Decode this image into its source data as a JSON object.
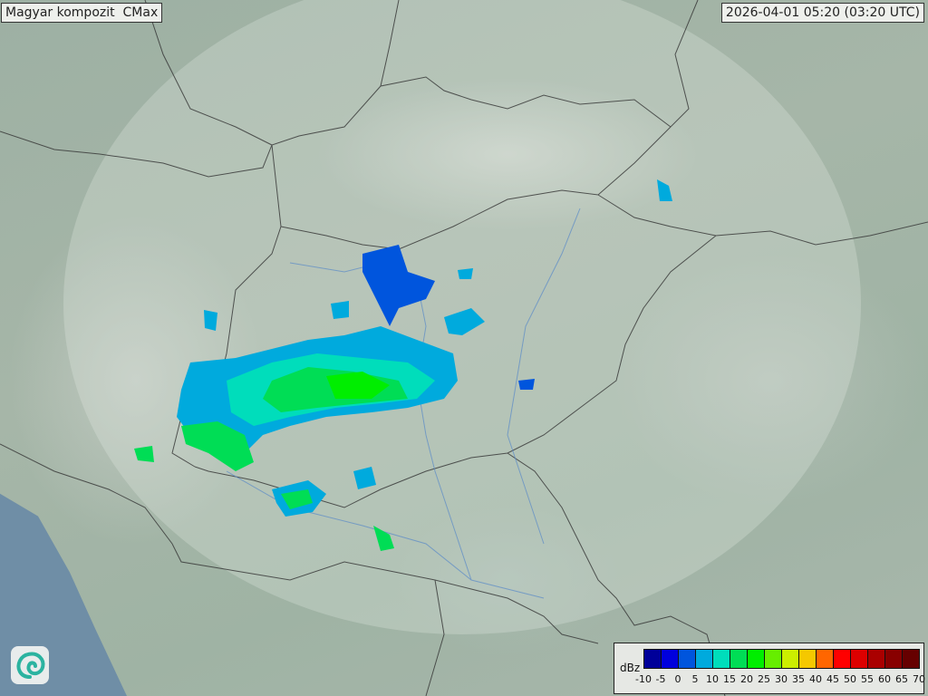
{
  "header": {
    "product_title": "Magyar kompozit  CMax",
    "timestamp": "2026-04-01 05:20 (03:20 UTC)"
  },
  "legend": {
    "unit": "dBz",
    "colors": [
      "#000099",
      "#0000dd",
      "#0055dd",
      "#00aadd",
      "#00ddbb",
      "#00dd55",
      "#00ee00",
      "#66ee00",
      "#ccee00",
      "#f5c800",
      "#ff6600",
      "#ff0000",
      "#dd0000",
      "#aa0000",
      "#880000",
      "#660000"
    ],
    "ticks": [
      "-10",
      "-5",
      "0",
      "5",
      "10",
      "15",
      "20",
      "25",
      "30",
      "35",
      "40",
      "45",
      "50",
      "55",
      "60",
      "65",
      "70"
    ]
  },
  "logo": {
    "icon": "swirl-logo-icon"
  }
}
